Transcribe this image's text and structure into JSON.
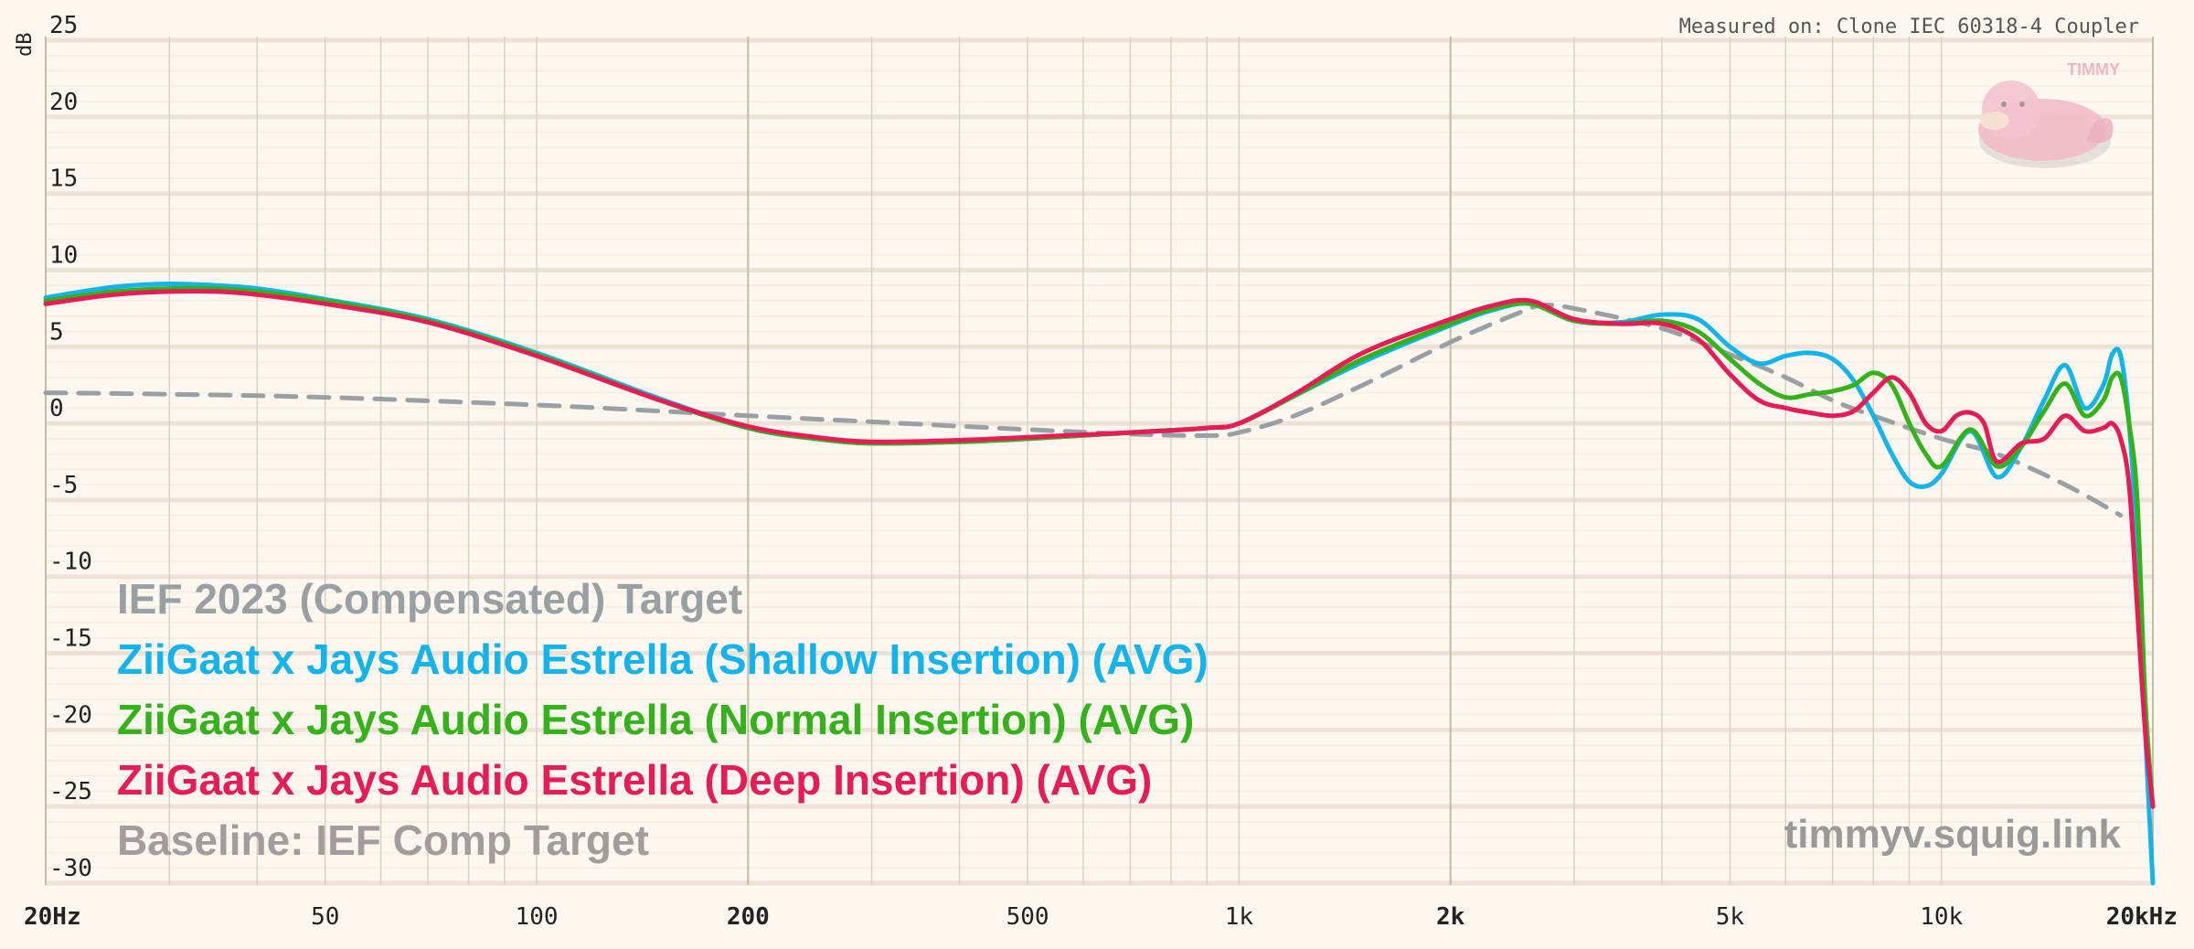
{
  "measured_on": "Measured on: Clone IEC 60318-4 Coupler",
  "watermark": "timmyv.squig.link",
  "mascot_label": "TIMMY",
  "mascot_icon": "slowpoke-icon",
  "legend": [
    {
      "label": "IEF 2023 (Compensated) Target",
      "color": "#98a0a4"
    },
    {
      "label": "ZiiGaat x Jays Audio Estrella (Shallow Insertion) (AVG)",
      "color": "#13b3ec"
    },
    {
      "label": "ZiiGaat x Jays Audio Estrella (Normal Insertion) (AVG)",
      "color": "#33b21c"
    },
    {
      "label": "ZiiGaat x Jays Audio Estrella (Deep Insertion) (AVG)",
      "color": "#e61d55"
    },
    {
      "label": "Baseline: IEF Comp Target",
      "color": "#a39c9c"
    }
  ],
  "chart_data": {
    "type": "line",
    "x_scale": "log",
    "xlim": [
      20,
      20000
    ],
    "ylim": [
      -30,
      25
    ],
    "ylabel": "dB",
    "grid": true,
    "x_ticks": [
      {
        "value": 20,
        "label": "20Hz"
      },
      {
        "value": 50,
        "label": "50"
      },
      {
        "value": 100,
        "label": "100"
      },
      {
        "value": 200,
        "label": "200"
      },
      {
        "value": 500,
        "label": "500"
      },
      {
        "value": 1000,
        "label": "1k"
      },
      {
        "value": 2000,
        "label": "2k"
      },
      {
        "value": 5000,
        "label": "5k"
      },
      {
        "value": 10000,
        "label": "10k"
      },
      {
        "value": 20000,
        "label": "20kHz"
      }
    ],
    "y_ticks": [
      25,
      20,
      15,
      10,
      5,
      0,
      -5,
      -10,
      -15,
      -20,
      -25,
      -30
    ],
    "series": [
      {
        "name": "IEF 2023 (Compensated) Target",
        "color": "#98a0a4",
        "dashed": true,
        "x": [
          20,
          30,
          50,
          100,
          150,
          200,
          300,
          500,
          700,
          900,
          1000,
          1200,
          1500,
          2000,
          2500,
          2700,
          3000,
          4000,
          5000,
          6000,
          7000,
          8000,
          10000,
          12000,
          15000,
          18000
        ],
        "y": [
          2.0,
          1.9,
          1.7,
          1.2,
          0.8,
          0.5,
          0.1,
          -0.4,
          -0.7,
          -0.8,
          -0.6,
          0.5,
          2.5,
          5.3,
          7.2,
          7.7,
          7.5,
          6.2,
          4.5,
          3.0,
          1.5,
          0.5,
          -1.0,
          -2.0,
          -4.0,
          -6.0
        ]
      },
      {
        "name": "ZiiGaat x Jays Audio Estrella (Shallow Insertion) (AVG)",
        "color": "#13b3ec",
        "dashed": false,
        "x": [
          20,
          25,
          30,
          35,
          40,
          50,
          70,
          100,
          150,
          200,
          250,
          300,
          400,
          500,
          700,
          900,
          1000,
          1200,
          1500,
          2000,
          2300,
          2600,
          3000,
          3500,
          4000,
          4500,
          5000,
          5500,
          6000,
          6500,
          7000,
          7500,
          8000,
          8500,
          9000,
          9500,
          10000,
          11000,
          12000,
          13000,
          14000,
          15000,
          16000,
          17000,
          17500,
          18000,
          18500,
          19000,
          19500,
          20000
        ],
        "y": [
          8.2,
          8.9,
          9.1,
          9.0,
          8.8,
          8.1,
          6.8,
          4.6,
          1.6,
          -0.3,
          -1.0,
          -1.3,
          -1.2,
          -1.0,
          -0.6,
          -0.3,
          0.0,
          1.8,
          4.0,
          6.4,
          7.4,
          7.8,
          6.7,
          6.6,
          7.1,
          6.8,
          5.0,
          3.9,
          4.4,
          4.6,
          4.2,
          2.8,
          0.5,
          -2.0,
          -3.8,
          -4.1,
          -3.3,
          -0.5,
          -3.5,
          -1.5,
          1.5,
          3.8,
          1.0,
          2.5,
          4.5,
          4.4,
          0.0,
          -8.0,
          -20.0,
          -30.0
        ]
      },
      {
        "name": "ZiiGaat x Jays Audio Estrella (Normal Insertion) (AVG)",
        "color": "#33b21c",
        "dashed": false,
        "x": [
          20,
          25,
          30,
          35,
          40,
          50,
          70,
          100,
          150,
          200,
          250,
          300,
          400,
          500,
          700,
          900,
          1000,
          1200,
          1500,
          2000,
          2300,
          2600,
          3000,
          3500,
          4000,
          4500,
          5000,
          5500,
          6000,
          6500,
          7000,
          7500,
          8000,
          8500,
          9000,
          9500,
          10000,
          11000,
          12000,
          13000,
          14000,
          15000,
          16000,
          17000,
          17500,
          18000,
          18500,
          19000,
          19500,
          20000
        ],
        "y": [
          8.0,
          8.6,
          8.8,
          8.8,
          8.6,
          8.0,
          6.7,
          4.5,
          1.5,
          -0.3,
          -1.0,
          -1.3,
          -1.2,
          -1.0,
          -0.6,
          -0.3,
          0.0,
          1.8,
          4.2,
          6.5,
          7.5,
          7.8,
          6.7,
          6.5,
          6.7,
          6.0,
          4.2,
          2.6,
          1.7,
          1.9,
          2.1,
          2.5,
          3.3,
          2.5,
          0.0,
          -2.0,
          -2.8,
          -0.4,
          -2.8,
          -1.5,
          0.8,
          2.6,
          0.5,
          1.5,
          3.0,
          3.0,
          0.0,
          -5.0,
          -18.0,
          -25.0
        ]
      },
      {
        "name": "ZiiGaat x Jays Audio Estrella (Deep Insertion) (AVG)",
        "color": "#e61d55",
        "dashed": false,
        "x": [
          20,
          25,
          30,
          35,
          40,
          50,
          70,
          100,
          150,
          200,
          250,
          300,
          400,
          500,
          700,
          900,
          1000,
          1200,
          1500,
          2000,
          2300,
          2600,
          3000,
          3500,
          4000,
          4500,
          5000,
          5500,
          6000,
          6500,
          7000,
          7500,
          8000,
          8500,
          9000,
          9500,
          10000,
          10500,
          11000,
          11500,
          12000,
          13000,
          14000,
          15000,
          16000,
          17000,
          17500,
          18000,
          18500,
          19000,
          19500,
          20000
        ],
        "y": [
          7.8,
          8.4,
          8.6,
          8.6,
          8.4,
          7.8,
          6.6,
          4.4,
          1.5,
          -0.2,
          -0.9,
          -1.2,
          -1.1,
          -0.9,
          -0.6,
          -0.3,
          0.0,
          1.9,
          4.6,
          6.8,
          7.7,
          8.0,
          6.8,
          6.5,
          6.5,
          5.5,
          3.2,
          1.5,
          1.0,
          0.7,
          0.5,
          0.8,
          2.0,
          3.0,
          2.0,
          0.0,
          -0.5,
          0.5,
          0.7,
          0.0,
          -2.5,
          -1.3,
          -1.0,
          0.5,
          -0.5,
          -0.3,
          0.0,
          -1.0,
          -4.0,
          -12.0,
          -20.0,
          -25.0
        ]
      }
    ]
  }
}
